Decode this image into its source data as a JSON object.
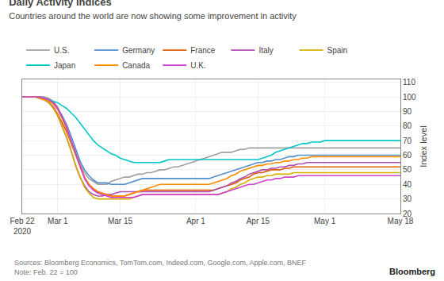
{
  "chart_data": {
    "type": "line",
    "title": "Daily Activity Indices",
    "subtitle": "Countries around the world are now showing some improvement in activity",
    "ylabel": "Index level",
    "annotations": [
      "Sources: Bloomberg Economics, TomTom.com, Indeed.com, Google.com, Apple.com, BNEF\nNote: Feb. 22 = 100",
      "Bloomberg"
    ],
    "categories": [
      "Feb 22\n2020",
      null,
      null,
      null,
      null,
      null,
      null,
      null,
      "Mar 1",
      null,
      null,
      null,
      null,
      null,
      null,
      null,
      null,
      null,
      null,
      null,
      null,
      null,
      "Mar 15",
      null,
      null,
      null,
      null,
      null,
      null,
      null,
      null,
      null,
      null,
      null,
      null,
      null,
      null,
      null,
      null,
      "Apr 1",
      null,
      null,
      null,
      null,
      null,
      null,
      null,
      null,
      null,
      null,
      null,
      null,
      null,
      "Apr 15",
      null,
      null,
      null,
      null,
      null,
      null,
      null,
      null,
      null,
      null,
      null,
      null,
      null,
      null,
      "May 1",
      null,
      null,
      null,
      null,
      null,
      null,
      null,
      null,
      null,
      null,
      null,
      null,
      null,
      null,
      null,
      null,
      "May 18"
    ],
    "series": [
      {
        "name": "U.S.",
        "color": "#a0a0a0",
        "values": [
          100,
          100,
          100,
          100,
          100,
          100,
          99,
          97,
          93,
          86,
          78,
          70,
          62,
          54,
          48,
          44,
          42,
          40,
          40,
          40,
          42,
          43,
          44,
          45,
          45,
          46,
          47,
          47,
          48,
          48,
          49,
          50,
          50,
          51,
          52,
          52,
          53,
          54,
          55,
          56,
          57,
          58,
          59,
          60,
          61,
          62,
          62,
          62,
          63,
          64,
          64,
          65,
          65,
          65,
          65,
          65,
          65,
          65,
          65,
          65,
          65,
          65,
          65,
          65,
          65,
          65,
          65,
          65,
          65,
          65,
          65,
          65,
          65,
          65,
          65,
          65,
          65,
          65,
          65,
          65,
          65,
          65,
          65,
          65,
          65,
          65
        ]
      },
      {
        "name": "Germany",
        "color": "#4f8fce",
        "values": [
          100,
          100,
          100,
          100,
          100,
          99,
          98,
          96,
          92,
          87,
          81,
          73,
          64,
          56,
          50,
          46,
          43,
          41,
          41,
          41,
          40,
          40,
          40,
          40,
          41,
          42,
          43,
          44,
          44,
          44,
          44,
          44,
          44,
          44,
          44,
          44,
          44,
          44,
          44,
          44,
          44,
          44,
          44,
          45,
          46,
          47,
          48,
          49,
          50,
          51,
          52,
          53,
          54,
          55,
          55,
          56,
          56,
          57,
          57,
          58,
          59,
          59,
          60,
          60,
          60,
          60,
          60,
          60,
          60,
          60,
          60,
          60,
          60,
          60,
          60,
          60,
          60,
          60,
          60,
          60,
          60,
          60,
          60,
          60,
          60,
          60
        ]
      },
      {
        "name": "France",
        "color": "#e05a00",
        "values": [
          100,
          100,
          100,
          100,
          99,
          98,
          96,
          93,
          88,
          82,
          76,
          68,
          60,
          52,
          45,
          40,
          37,
          35,
          34,
          33,
          32,
          32,
          32,
          32,
          33,
          34,
          35,
          36,
          36,
          36,
          36,
          36,
          36,
          36,
          36,
          36,
          36,
          36,
          36,
          36,
          36,
          36,
          36,
          36,
          37,
          38,
          39,
          40,
          41,
          43,
          44,
          45,
          47,
          48,
          48,
          49,
          50,
          50,
          50,
          51,
          51,
          52,
          52,
          52,
          52,
          52,
          52,
          52,
          52,
          52,
          52,
          52,
          52,
          52,
          52,
          52,
          52,
          52,
          52,
          52,
          52,
          52,
          52,
          52,
          52,
          52
        ]
      },
      {
        "name": "Italy",
        "color": "#b04db0",
        "values": [
          100,
          100,
          100,
          100,
          99,
          98,
          96,
          93,
          87,
          80,
          72,
          63,
          53,
          45,
          39,
          35,
          33,
          32,
          32,
          33,
          33,
          34,
          35,
          35,
          35,
          35,
          35,
          35,
          35,
          35,
          35,
          35,
          35,
          35,
          35,
          35,
          35,
          35,
          35,
          35,
          35,
          35,
          35,
          36,
          37,
          38,
          39,
          41,
          42,
          44,
          45,
          47,
          48,
          49,
          50,
          50,
          51,
          51,
          52,
          52,
          53,
          53,
          54,
          54,
          55,
          55,
          55,
          55,
          55,
          55,
          55,
          55,
          55,
          55,
          55,
          55,
          55,
          55,
          55,
          55,
          55,
          55,
          55,
          55,
          55,
          55
        ]
      },
      {
        "name": "Spain",
        "color": "#d4b000",
        "values": [
          100,
          100,
          100,
          100,
          99,
          98,
          96,
          92,
          87,
          80,
          72,
          63,
          53,
          45,
          38,
          34,
          31,
          30,
          30,
          30,
          30,
          30,
          30,
          30,
          30,
          31,
          32,
          33,
          33,
          33,
          33,
          33,
          33,
          33,
          33,
          33,
          33,
          33,
          33,
          33,
          33,
          33,
          33,
          33,
          33,
          34,
          35,
          37,
          38,
          40,
          41,
          43,
          44,
          45,
          45,
          46,
          46,
          47,
          47,
          47,
          47,
          48,
          48,
          48,
          48,
          48,
          48,
          48,
          48,
          48,
          48,
          48,
          48,
          48,
          48,
          48,
          48,
          48,
          48,
          48,
          48,
          48,
          48,
          48,
          48,
          48
        ]
      },
      {
        "name": "Japan",
        "color": "#00c8c8",
        "values": [
          100,
          100,
          100,
          100,
          99,
          99,
          98,
          97,
          96,
          94,
          92,
          89,
          86,
          82,
          78,
          74,
          70,
          67,
          65,
          63,
          61,
          60,
          58,
          57,
          56,
          55,
          55,
          55,
          55,
          55,
          55,
          55,
          56,
          57,
          57,
          57,
          57,
          57,
          57,
          57,
          57,
          57,
          57,
          57,
          57,
          57,
          57,
          57,
          57,
          57,
          57,
          57,
          57,
          57,
          58,
          59,
          60,
          62,
          63,
          64,
          65,
          66,
          67,
          68,
          68,
          69,
          69,
          69,
          70,
          70,
          70,
          70,
          70,
          70,
          70,
          70,
          70,
          70,
          70,
          70,
          70,
          70,
          70,
          70,
          70,
          70
        ]
      },
      {
        "name": "Canada",
        "color": "#ff8c00",
        "values": [
          100,
          100,
          100,
          100,
          99,
          98,
          97,
          95,
          91,
          85,
          78,
          69,
          60,
          52,
          45,
          40,
          37,
          35,
          34,
          33,
          32,
          32,
          32,
          32,
          33,
          34,
          35,
          36,
          37,
          38,
          39,
          40,
          40,
          40,
          40,
          40,
          40,
          40,
          40,
          40,
          40,
          40,
          40,
          41,
          42,
          43,
          44,
          46,
          47,
          49,
          50,
          51,
          52,
          53,
          53,
          54,
          54,
          55,
          55,
          56,
          56,
          57,
          57,
          58,
          58,
          59,
          59,
          59,
          59,
          59,
          59,
          59,
          59,
          59,
          59,
          59,
          59,
          59,
          59,
          59,
          59,
          59,
          59,
          59,
          59,
          59
        ]
      },
      {
        "name": "U.K.",
        "color": "#d040d0",
        "values": [
          100,
          100,
          100,
          100,
          100,
          99,
          98,
          96,
          92,
          86,
          79,
          70,
          61,
          52,
          44,
          39,
          36,
          34,
          33,
          32,
          31,
          31,
          31,
          31,
          31,
          31,
          32,
          33,
          33,
          33,
          33,
          33,
          33,
          33,
          33,
          33,
          33,
          33,
          33,
          33,
          33,
          33,
          33,
          33,
          33,
          34,
          35,
          36,
          37,
          38,
          39,
          40,
          40,
          41,
          42,
          43,
          43,
          44,
          44,
          45,
          45,
          45,
          46,
          46,
          46,
          46,
          46,
          46,
          46,
          46,
          46,
          46,
          46,
          46,
          46,
          46,
          46,
          46,
          46,
          46,
          46,
          46,
          46,
          46,
          46,
          46
        ]
      }
    ],
    "ylim": [
      20,
      112
    ],
    "yticks": [
      20,
      30,
      40,
      50,
      60,
      70,
      80,
      90,
      100,
      110
    ],
    "grid": true,
    "legend": "top"
  }
}
